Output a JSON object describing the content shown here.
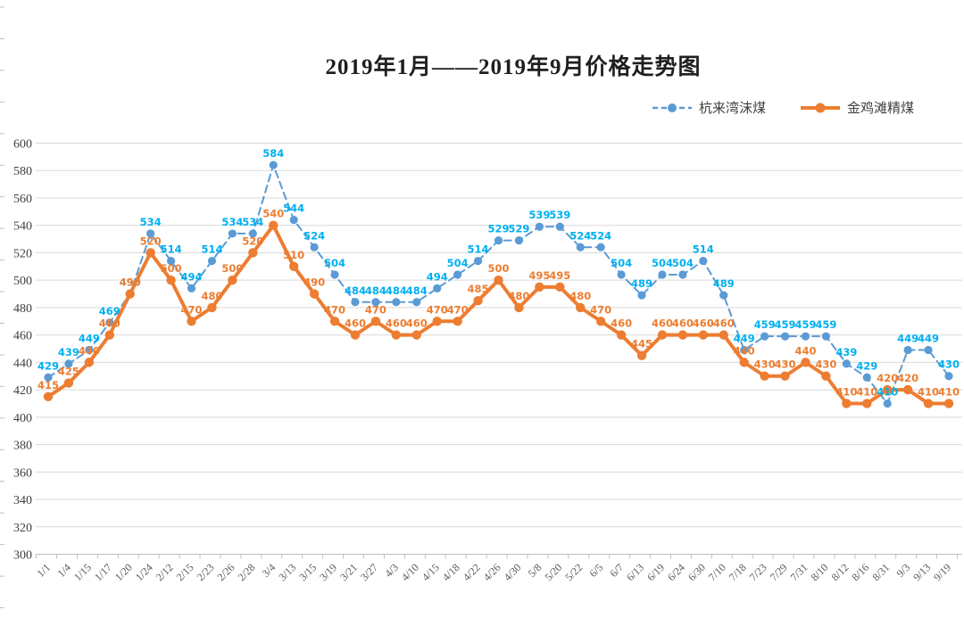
{
  "title": {
    "text": "2019年1月——2019年9月价格走势图"
  },
  "legend": {
    "items": [
      {
        "label": "杭来湾沫煤",
        "color": "#5B9BD5",
        "line_style": "dashed",
        "marker": "circle"
      },
      {
        "label": "金鸡滩精煤",
        "color": "#ED7D31",
        "line_style": "solid",
        "marker": "circle"
      }
    ]
  },
  "chart_data": {
    "type": "line",
    "title": "2019年1月——2019年9月价格走势图",
    "categories": [
      "1/1",
      "1/4",
      "1/15",
      "1/17",
      "1/20",
      "1/24",
      "2/12",
      "2/15",
      "2/23",
      "2/26",
      "2/28",
      "3/4",
      "3/13",
      "3/15",
      "3/19",
      "3/21",
      "3/27",
      "4/3",
      "4/10",
      "4/15",
      "4/18",
      "4/22",
      "4/26",
      "4/30",
      "5/8",
      "5/20",
      "5/22",
      "6/5",
      "6/7",
      "6/13",
      "6/19",
      "6/24",
      "6/30",
      "7/10",
      "7/18",
      "7/23",
      "7/29",
      "7/31",
      "8/10",
      "8/12",
      "8/16",
      "8/31",
      "9/3",
      "9/13",
      "9/19"
    ],
    "series": [
      {
        "name": "杭来湾沫煤",
        "color": "#5B9BD5",
        "label_color": "#00B0F0",
        "line_style": "dashed",
        "values": [
          429,
          439,
          449,
          469,
          490,
          534,
          514,
          494,
          514,
          534,
          534,
          584,
          544,
          524,
          504,
          484,
          484,
          484,
          484,
          494,
          504,
          514,
          529,
          529,
          539,
          539,
          524,
          524,
          504,
          489,
          504,
          504,
          514,
          489,
          449,
          459,
          459,
          459,
          459,
          439,
          429,
          410,
          449,
          449,
          430
        ]
      },
      {
        "name": "金鸡滩精煤",
        "color": "#ED7D31",
        "label_color": "#ED7D31",
        "line_style": "solid",
        "values": [
          415,
          425,
          440,
          460,
          490,
          520,
          500,
          470,
          480,
          500,
          520,
          540,
          510,
          490,
          470,
          460,
          470,
          460,
          460,
          470,
          470,
          485,
          500,
          480,
          495,
          495,
          480,
          470,
          460,
          445,
          460,
          460,
          460,
          460,
          440,
          430,
          430,
          440,
          430,
          410,
          410,
          420,
          420,
          410,
          410
        ]
      }
    ],
    "ylim": [
      300,
      600
    ],
    "y_tick_step": 20,
    "y_ticks": [
      300,
      320,
      340,
      360,
      380,
      400,
      420,
      440,
      460,
      480,
      500,
      520,
      540,
      560,
      580,
      600
    ],
    "grid": true,
    "legend_position": "top-right",
    "data_labels": true,
    "colors": {
      "grid": "#D9D9D9",
      "axis": "#BFBFBF",
      "tick_label": "#595959"
    }
  }
}
